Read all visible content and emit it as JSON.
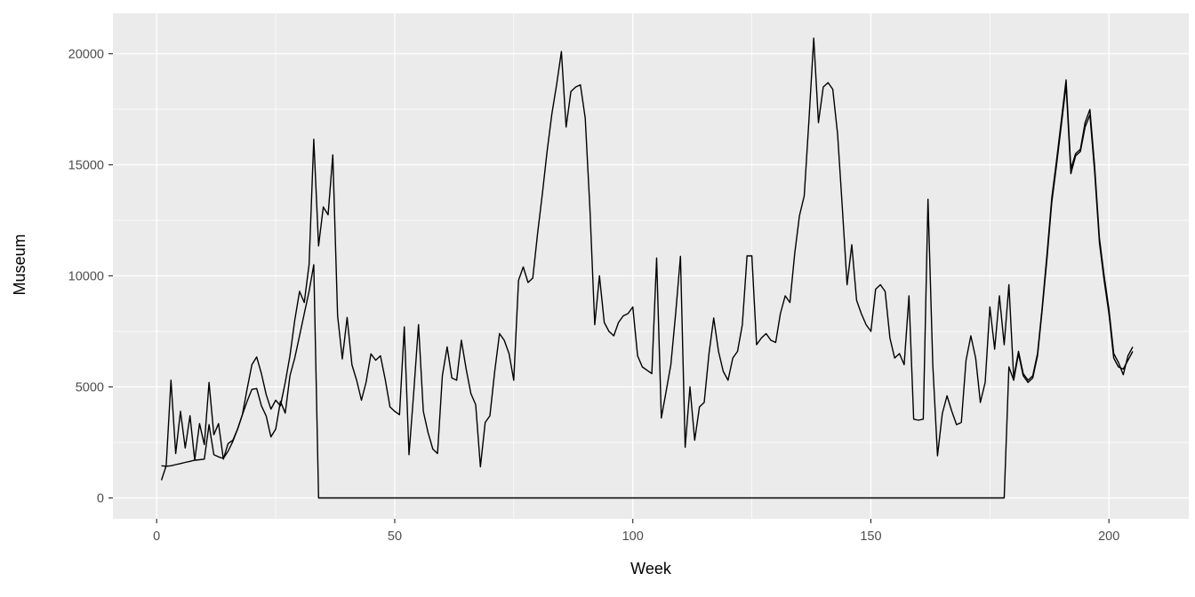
{
  "chart_data": {
    "type": "line",
    "title": "",
    "xlabel": "Week",
    "ylabel": "Museum",
    "x_start": 1,
    "x_step": 1,
    "x_ticks": [
      0,
      50,
      100,
      150,
      200
    ],
    "x_minor_ticks": [
      25,
      75,
      125,
      175
    ],
    "y_ticks": [
      0,
      5000,
      10000,
      15000,
      20000
    ],
    "y_minor_ticks": [
      2500,
      7500,
      12500,
      17500
    ],
    "xlim": [
      -9.2,
      216.9
    ],
    "ylim": [
      -920,
      21940
    ],
    "grid": "major+minor white on grey panel",
    "legend": "none",
    "series": [
      {
        "name": "series_1",
        "values": [
          800,
          1450,
          5300,
          2000,
          3900,
          2250,
          3700,
          1700,
          3350,
          2400,
          5200,
          2850,
          3350,
          1750,
          2450,
          2600,
          3100,
          3750,
          4900,
          6000,
          6350,
          5600,
          4650,
          4000,
          4400,
          4150,
          5200,
          6400,
          8000,
          9300,
          8800,
          10500,
          16150,
          11350,
          13100,
          12750,
          15450,
          8200,
          6260,
          8130,
          6000,
          5300,
          4400,
          5220,
          6490,
          6200,
          6400,
          5350,
          4100,
          3900,
          3750,
          7700,
          1950,
          4800,
          7800,
          3900,
          2950,
          2200,
          2000,
          5500,
          6800,
          5400,
          5300,
          7100,
          5800,
          4700,
          4200,
          1400,
          3400,
          3700,
          5700,
          7400,
          7100,
          6500,
          5300,
          9800,
          10400,
          9700,
          9900,
          11900,
          13700,
          15600,
          17300,
          18600,
          20100,
          16700,
          18300,
          18500,
          18600,
          17100,
          13000,
          7800,
          10000,
          7900,
          7500,
          7300,
          7900,
          8200,
          8300,
          8600,
          6400,
          5900,
          5750,
          5600,
          10800,
          3600,
          4800,
          6000,
          8300,
          10880,
          2280,
          5000,
          2600,
          4100,
          4300,
          6500,
          8100,
          6600,
          5700,
          5300,
          6300,
          6600,
          7800,
          10900,
          10900,
          6900,
          7200,
          7400,
          7100,
          7000,
          8300,
          9100,
          8800,
          11000,
          12700,
          13600,
          17000,
          20700,
          16900,
          18500,
          18700,
          18400,
          16400,
          13100,
          9600,
          11400,
          8900,
          8300,
          7800,
          7500,
          9400,
          9600,
          9300,
          7200,
          6300,
          6500,
          6000,
          9100,
          3550,
          3500,
          3550,
          13450,
          6000,
          1900,
          3800,
          4600,
          3900,
          3300,
          3400,
          6200,
          7300,
          6300,
          4300,
          5200,
          8600,
          6700,
          9100,
          6900,
          9600,
          5400,
          6600,
          5600,
          5300,
          5500,
          6500,
          8600,
          11000,
          13500,
          15200,
          17000,
          18820,
          14820,
          15500,
          15700,
          16900,
          17490,
          14950,
          11700,
          10000,
          8500,
          6500,
          6100,
          5550,
          6400,
          6800
        ]
      },
      {
        "name": "series_2",
        "values_weeks_1_33": [
          1450,
          1430,
          1450,
          1500,
          1550,
          1600,
          1650,
          1700,
          1720,
          1750,
          3300,
          1950,
          1850,
          1780,
          2100,
          2550,
          3100,
          3750,
          4350,
          4890,
          4930,
          4150,
          3690,
          2750,
          3100,
          4350,
          3820,
          5500,
          6300,
          7300,
          8300,
          9300,
          10500
        ],
        "zero_from_week": 34,
        "zero_to_week": 178,
        "values_weeks_179_205": [
          5900,
          5300,
          6500,
          5500,
          5200,
          5400,
          6400,
          8500,
          10800,
          13300,
          15000,
          16800,
          18600,
          14600,
          15400,
          15600,
          16700,
          17250,
          14700,
          11500,
          9800,
          8300,
          6300,
          5900,
          5800,
          6200,
          6600
        ]
      }
    ]
  },
  "style": {
    "background": "#FFFFFF",
    "panel_bg": "#EBEBEB",
    "grid_color": "#FFFFFF",
    "line_color": "#000000",
    "tick_mark_color": "#333333",
    "tick_label_color": "#4D4D4D",
    "axis_title_color": "#000000"
  }
}
